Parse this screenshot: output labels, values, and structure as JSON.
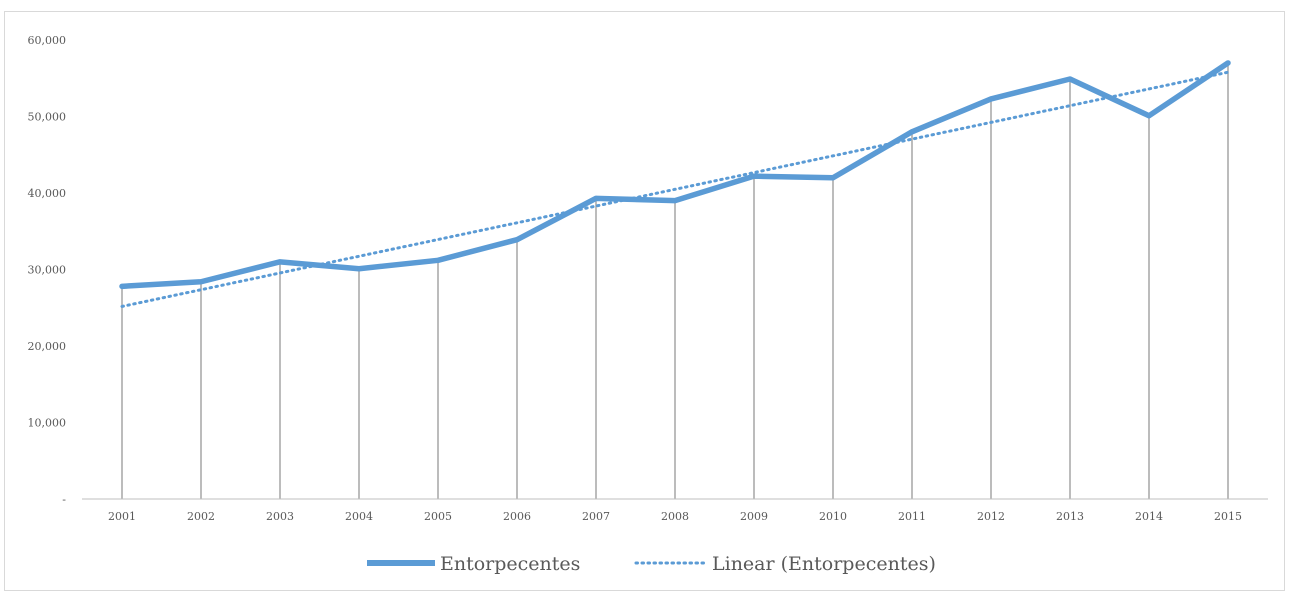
{
  "chart_data": {
    "type": "line",
    "title": "",
    "xlabel": "",
    "ylabel": "",
    "categories": [
      "2001",
      "2002",
      "2003",
      "2004",
      "2005",
      "2006",
      "2007",
      "2008",
      "2009",
      "2010",
      "2011",
      "2012",
      "2013",
      "2014",
      "2015"
    ],
    "series": [
      {
        "name": "Entorpecentes",
        "color": "#5b9bd5",
        "style": "solid",
        "values": [
          27800,
          28400,
          31000,
          30100,
          31200,
          33900,
          39300,
          39000,
          42200,
          42000,
          48000,
          52300,
          54900,
          50100,
          57000
        ]
      },
      {
        "name": "Linear (Entorpecentes)",
        "color": "#5b9bd5",
        "style": "dotted",
        "trendline_of": "Entorpecentes"
      }
    ],
    "y_ticks": [
      "-",
      "10,000",
      "20,000",
      "30,000",
      "40,000",
      "50,000",
      "60,000"
    ],
    "ylim": [
      0,
      60000
    ],
    "grid": false,
    "drop_lines": true,
    "legend_position": "bottom"
  }
}
